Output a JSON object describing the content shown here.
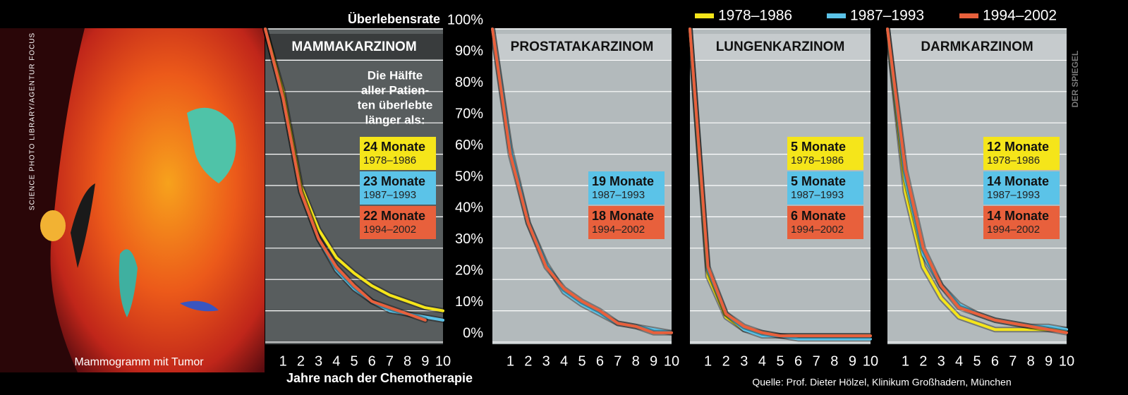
{
  "chart_data": [
    {
      "type": "line",
      "title": "MAMMAKARZINOM",
      "background": "#585d5e",
      "ylabel": "Überlebensrate",
      "xlabel": "Jahre nach der Chemotherapie",
      "annotation": [
        "Die Hälfte",
        "aller Patien-",
        "ten überlebte",
        "länger als:"
      ],
      "x": [
        0,
        1,
        2,
        3,
        4,
        5,
        6,
        7,
        8,
        9,
        10
      ],
      "xlim": [
        0,
        10
      ],
      "xticks": [
        1,
        2,
        3,
        4,
        5,
        6,
        7,
        8,
        9,
        10
      ],
      "ylim": [
        0,
        100
      ],
      "yticks": [
        {
          "value": 0,
          "label": "0%"
        },
        {
          "value": 10,
          "label": "10%"
        },
        {
          "value": 20,
          "label": "20%"
        },
        {
          "value": 30,
          "label": "30%"
        },
        {
          "value": 40,
          "label": "40%"
        },
        {
          "value": 50,
          "label": "50%"
        },
        {
          "value": 60,
          "label": "60%"
        },
        {
          "value": 70,
          "label": "70%"
        },
        {
          "value": 80,
          "label": "80%"
        },
        {
          "value": 90,
          "label": "90%"
        },
        {
          "value": 100,
          "label": "100%"
        }
      ],
      "series": [
        {
          "name": "1978–1986",
          "color": "#f5e51a",
          "values": [
            100,
            80,
            50,
            36,
            27,
            22,
            18,
            15,
            13,
            11,
            10
          ],
          "median": 24,
          "median_label": "24 Monate"
        },
        {
          "name": "1987–1993",
          "color": "#5bc3e8",
          "values": [
            100,
            78,
            48,
            33,
            23,
            17,
            13,
            10,
            9,
            8,
            7
          ],
          "median": 23,
          "median_label": "23 Monate"
        },
        {
          "name": "1994–2002",
          "color": "#e8603c",
          "values": [
            100,
            78,
            48,
            33,
            24,
            18,
            13,
            11,
            9,
            7,
            null
          ],
          "median": 22,
          "median_label": "22 Monate"
        }
      ]
    },
    {
      "type": "line",
      "title": "PROSTATAKARZINOM",
      "background": "#b3babc",
      "x": [
        0,
        1,
        2,
        3,
        4,
        5,
        6,
        7,
        8,
        9,
        10
      ],
      "xlim": [
        0,
        10
      ],
      "xticks": [
        1,
        2,
        3,
        4,
        5,
        6,
        7,
        8,
        9,
        10
      ],
      "series": [
        {
          "name": "1987–1993",
          "color": "#5bc3e8",
          "values": [
            100,
            62,
            38,
            25,
            16,
            12,
            9,
            6,
            5,
            4,
            3
          ],
          "median": 19,
          "median_label": "19 Monate"
        },
        {
          "name": "1994–2002",
          "color": "#e8603c",
          "values": [
            100,
            60,
            38,
            24,
            17,
            13,
            10,
            6,
            5,
            3,
            3
          ],
          "median": 18,
          "median_label": "18 Monate"
        }
      ]
    },
    {
      "type": "line",
      "title": "LUNGENKARZINOM",
      "background": "#b3babc",
      "x": [
        0,
        1,
        2,
        3,
        4,
        5,
        6,
        7,
        8,
        9,
        10
      ],
      "xlim": [
        0,
        10
      ],
      "xticks": [
        1,
        2,
        3,
        4,
        5,
        6,
        7,
        8,
        9,
        10
      ],
      "series": [
        {
          "name": "1978–1986",
          "color": "#f5e51a",
          "values": [
            100,
            21,
            8,
            4,
            3,
            2,
            2,
            2,
            2,
            2,
            2
          ],
          "median": 5,
          "median_label": "5 Monate"
        },
        {
          "name": "1987–1993",
          "color": "#5bc3e8",
          "values": [
            100,
            23,
            9,
            4,
            2,
            2,
            1,
            1,
            1,
            1,
            1
          ],
          "median": 5,
          "median_label": "5 Monate"
        },
        {
          "name": "1994–2002",
          "color": "#e8603c",
          "values": [
            100,
            24,
            9,
            5,
            3,
            2,
            2,
            2,
            2,
            2,
            2
          ],
          "median": 6,
          "median_label": "6 Monate"
        }
      ]
    },
    {
      "type": "line",
      "title": "DARMKARZINOM",
      "background": "#b3babc",
      "x": [
        0,
        1,
        2,
        3,
        4,
        5,
        6,
        7,
        8,
        9,
        10
      ],
      "xlim": [
        0,
        10
      ],
      "xticks": [
        1,
        2,
        3,
        4,
        5,
        6,
        7,
        8,
        9,
        10
      ],
      "series": [
        {
          "name": "1978–1986",
          "color": "#f5e51a",
          "values": [
            100,
            48,
            24,
            14,
            8,
            6,
            4,
            4,
            4,
            4,
            4
          ],
          "median": 12,
          "median_label": "12 Monate"
        },
        {
          "name": "1987–1993",
          "color": "#5bc3e8",
          "values": [
            100,
            52,
            28,
            18,
            12,
            9,
            7,
            6,
            5,
            5,
            4
          ],
          "median": 14,
          "median_label": "14 Monate"
        },
        {
          "name": "1994–2002",
          "color": "#e8603c",
          "values": [
            100,
            55,
            30,
            18,
            11,
            9,
            7,
            6,
            5,
            4,
            3
          ],
          "median": 14,
          "median_label": "14 Monate"
        }
      ]
    }
  ],
  "legend": "top-right",
  "photo_caption": "Mammogramm mit Tumor",
  "photo_credit": "SCIENCE PHOTO LIBRARY/AGENTUR FOCUS",
  "publisher": "DER SPIEGEL",
  "source": "Quelle: Prof. Dieter Hölzel, Klinikum Großhadern, München"
}
